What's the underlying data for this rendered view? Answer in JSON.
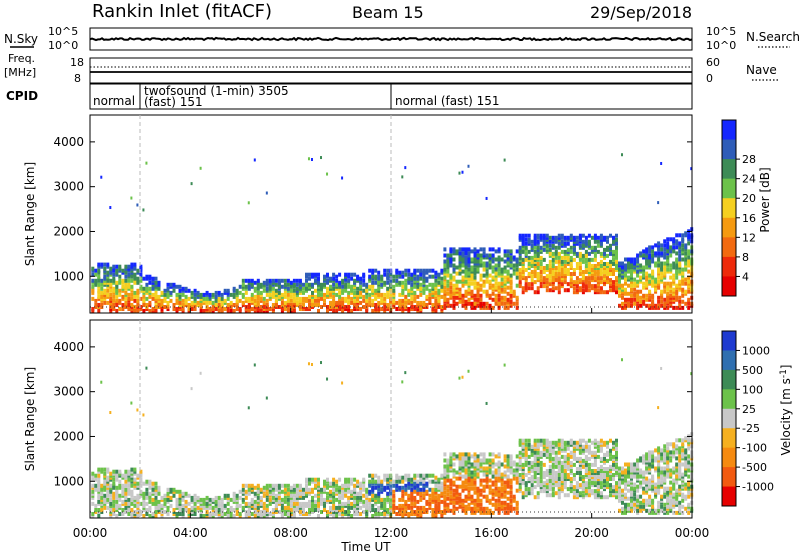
{
  "header": {
    "station": "Rankin Inlet (fitACF)",
    "beam": "Beam 15",
    "date": "29/Sep/2018"
  },
  "noise_panel": {
    "left_label": "N.Sky",
    "right_label": "N.Search",
    "ticks_left": [
      "10^5",
      "10^0"
    ],
    "ticks_right": [
      "10^5",
      "10^0"
    ]
  },
  "freq_panel": {
    "left_label_1": "Freq.",
    "left_label_2": "[MHz]",
    "ticks_left": [
      "18",
      "8"
    ],
    "right_label": "Nave",
    "ticks_right": [
      "60",
      "0"
    ]
  },
  "cpid_panel": {
    "label": "CPID",
    "modes": [
      {
        "text": "normal",
        "start_hour": 0
      },
      {
        "text": "twofsound (1-min) 3505",
        "sub": "(fast) 151",
        "start_hour": 2
      },
      {
        "text": "normal (fast) 151",
        "start_hour": 12
      }
    ]
  },
  "chart_data": [
    {
      "type": "heatmap",
      "name": "power",
      "ylabel": "Slant Range [km]",
      "yticks": [
        "1000",
        "2000",
        "3000",
        "4000"
      ],
      "ylim": [
        180,
        4600
      ],
      "colorbar_label": "Power [dB]",
      "colorbar_ticks": [
        "4",
        "8",
        "12",
        "16",
        "20",
        "24",
        "28"
      ],
      "colorbar_colors": [
        "#1427ff",
        "#2f5db8",
        "#3d8b56",
        "#6cc24a",
        "#f5d020",
        "#f59a10",
        "#f26a10",
        "#ee2a0a",
        "#e60000"
      ]
    },
    {
      "type": "heatmap",
      "name": "velocity",
      "ylabel": "Slant Range [km]",
      "yticks": [
        "1000",
        "2000",
        "3000",
        "4000"
      ],
      "ylim": [
        180,
        4600
      ],
      "colorbar_label": "Velocity [m s^-1]",
      "colorbar_ticks": [
        "1000",
        "500",
        "100",
        "25",
        "-25",
        "-100",
        "-500",
        "-1000"
      ],
      "colorbar_colors": [
        "#1e3ad0",
        "#2f6fb0",
        "#3d8b56",
        "#6cc24a",
        "#c8c8c8",
        "#f5b020",
        "#f58a10",
        "#f25a10",
        "#e60000"
      ]
    }
  ],
  "x_axis": {
    "ticks": [
      "00:00",
      "04:00",
      "08:00",
      "12:00",
      "16:00",
      "20:00",
      "00:00"
    ],
    "label": "Time UT"
  },
  "colors": {
    "power_low": "#1427ff",
    "power_high": "#e60000",
    "grid_dash": "#aaaaaa"
  }
}
